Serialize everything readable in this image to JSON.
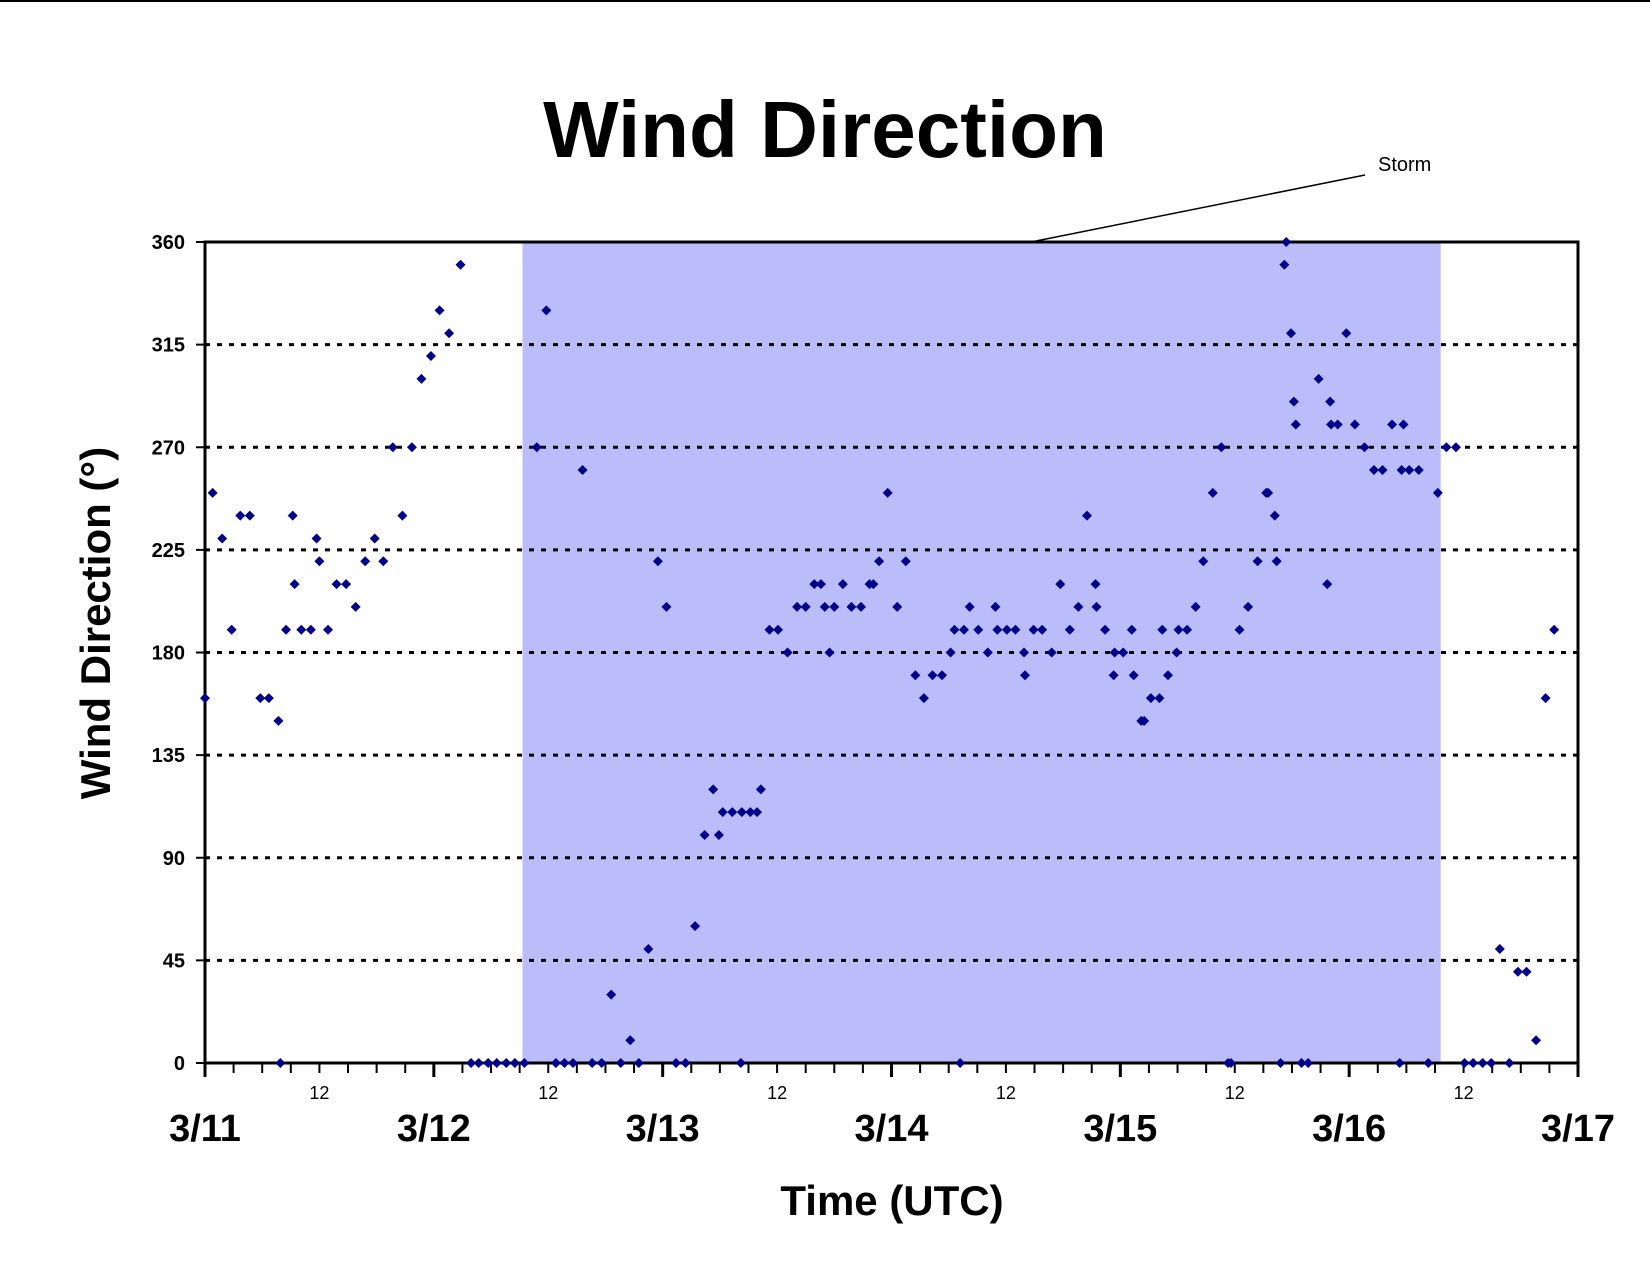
{
  "chart_data": {
    "type": "scatter",
    "title": "Wind Direction",
    "xlabel": "Time (UTC)",
    "ylabel": "Wind Direction (°)",
    "x_unit": "hours after 3/11 00 UTC",
    "xlim": [
      0,
      144
    ],
    "ylim": [
      0,
      360
    ],
    "y_ticks": [
      "0",
      "45",
      "90",
      "135",
      "180",
      "225",
      "270",
      "315",
      "360"
    ],
    "x_major_labels": [
      "3/11",
      "3/12",
      "3/13",
      "3/14",
      "3/15",
      "3/16",
      "3/17"
    ],
    "x_minor_label": "12",
    "grid": "horizontal dotted",
    "colors": {
      "marker": "#00008b",
      "storm_band": "#bbbdfb",
      "gridline": "#000000"
    },
    "storm_band": {
      "label": "Storm",
      "start": 33.3,
      "end": 129.6
    },
    "series": [
      {
        "points": [
          [
            0,
            160
          ],
          [
            0.8,
            250
          ],
          [
            1.8,
            230
          ],
          [
            2.8,
            190
          ],
          [
            3.7,
            240
          ],
          [
            4.7,
            240
          ],
          [
            5.8,
            160
          ],
          [
            6.7,
            160
          ],
          [
            7.7,
            150
          ],
          [
            7.9,
            0
          ],
          [
            8.5,
            190
          ],
          [
            9.4,
            210
          ],
          [
            9.2,
            240
          ],
          [
            10.1,
            190
          ],
          [
            11.1,
            190
          ],
          [
            11.7,
            230
          ],
          [
            12,
            220
          ],
          [
            12.9,
            190
          ],
          [
            13.8,
            210
          ],
          [
            14.8,
            210
          ],
          [
            15.8,
            200
          ],
          [
            16.8,
            220
          ],
          [
            17.8,
            230
          ],
          [
            18.7,
            220
          ],
          [
            19.7,
            270
          ],
          [
            20.7,
            240
          ],
          [
            21.7,
            270
          ],
          [
            22.7,
            300
          ],
          [
            23.7,
            310
          ],
          [
            24.6,
            330
          ],
          [
            25.6,
            320
          ],
          [
            26.8,
            350
          ],
          [
            27.9,
            0
          ],
          [
            28.7,
            0
          ],
          [
            29.7,
            0
          ],
          [
            30.6,
            0
          ],
          [
            31.6,
            0
          ],
          [
            32.5,
            0
          ],
          [
            33.5,
            0
          ],
          [
            34.8,
            270
          ],
          [
            35.8,
            330
          ],
          [
            36.8,
            0
          ],
          [
            37.7,
            0
          ],
          [
            38.6,
            0
          ],
          [
            39.6,
            260
          ],
          [
            40.6,
            0
          ],
          [
            41.6,
            0
          ],
          [
            42.6,
            30
          ],
          [
            43.6,
            0
          ],
          [
            44.6,
            10
          ],
          [
            45.5,
            0
          ],
          [
            46.5,
            50
          ],
          [
            47.5,
            220
          ],
          [
            48.4,
            200
          ],
          [
            49.4,
            0
          ],
          [
            50.4,
            0
          ],
          [
            51.4,
            60
          ],
          [
            52.4,
            100
          ],
          [
            53.3,
            120
          ],
          [
            53.9,
            100
          ],
          [
            54.3,
            110
          ],
          [
            55.3,
            110
          ],
          [
            56.2,
            0
          ],
          [
            56.3,
            110
          ],
          [
            57.2,
            110
          ],
          [
            57.9,
            110
          ],
          [
            58.3,
            120
          ],
          [
            59.2,
            190
          ],
          [
            60.1,
            190
          ],
          [
            61.1,
            180
          ],
          [
            62.1,
            200
          ],
          [
            63,
            200
          ],
          [
            63.9,
            210
          ],
          [
            64.6,
            210
          ],
          [
            65,
            200
          ],
          [
            65.5,
            180
          ],
          [
            66,
            200
          ],
          [
            66.9,
            210
          ],
          [
            67.8,
            200
          ],
          [
            68.8,
            200
          ],
          [
            69.7,
            210
          ],
          [
            70.1,
            210
          ],
          [
            70.7,
            220
          ],
          [
            71.6,
            250
          ],
          [
            72.6,
            200
          ],
          [
            73.5,
            220
          ],
          [
            74.5,
            170
          ],
          [
            75.4,
            160
          ],
          [
            76.3,
            170
          ],
          [
            77.3,
            170
          ],
          [
            78.2,
            180
          ],
          [
            78.6,
            190
          ],
          [
            79.2,
            0
          ],
          [
            79.6,
            190
          ],
          [
            80.2,
            200
          ],
          [
            81.1,
            190
          ],
          [
            82.1,
            180
          ],
          [
            82.9,
            200
          ],
          [
            83.1,
            190
          ],
          [
            84.1,
            190
          ],
          [
            85,
            190
          ],
          [
            85.9,
            180
          ],
          [
            86,
            170
          ],
          [
            86.9,
            190
          ],
          [
            87.8,
            190
          ],
          [
            88.8,
            180
          ],
          [
            89.7,
            210
          ],
          [
            90.7,
            190
          ],
          [
            91.6,
            200
          ],
          [
            92.5,
            240
          ],
          [
            93.4,
            210
          ],
          [
            93.5,
            200
          ],
          [
            94.4,
            190
          ],
          [
            95.3,
            170
          ],
          [
            95.4,
            180
          ],
          [
            96.3,
            180
          ],
          [
            97.2,
            190
          ],
          [
            97.4,
            170
          ],
          [
            98.2,
            150
          ],
          [
            98.5,
            150
          ],
          [
            99.2,
            160
          ],
          [
            100.1,
            160
          ],
          [
            100.4,
            190
          ],
          [
            101,
            170
          ],
          [
            101.9,
            180
          ],
          [
            102.1,
            190
          ],
          [
            103,
            190
          ],
          [
            103.9,
            200
          ],
          [
            104.7,
            220
          ],
          [
            105.7,
            250
          ],
          [
            106.6,
            270
          ],
          [
            107.3,
            0
          ],
          [
            107.6,
            0
          ],
          [
            108.5,
            190
          ],
          [
            109.4,
            200
          ],
          [
            110.4,
            220
          ],
          [
            111.3,
            250
          ],
          [
            111.5,
            250
          ],
          [
            112.2,
            240
          ],
          [
            112.4,
            220
          ],
          [
            112.8,
            0
          ],
          [
            113.2,
            350
          ],
          [
            113.4,
            360
          ],
          [
            113.9,
            320
          ],
          [
            114.2,
            290
          ],
          [
            114.4,
            280
          ],
          [
            115,
            0
          ],
          [
            115.7,
            0
          ],
          [
            116.8,
            300
          ],
          [
            117.7,
            210
          ],
          [
            118,
            290
          ],
          [
            118.1,
            280
          ],
          [
            118.8,
            280
          ],
          [
            119.7,
            320
          ],
          [
            120.6,
            280
          ],
          [
            121.6,
            270
          ],
          [
            122.6,
            260
          ],
          [
            123.5,
            260
          ],
          [
            124.5,
            280
          ],
          [
            125.3,
            0
          ],
          [
            125.5,
            260
          ],
          [
            125.7,
            280
          ],
          [
            126.3,
            260
          ],
          [
            127.3,
            260
          ],
          [
            128.3,
            0
          ],
          [
            129.3,
            250
          ],
          [
            130.2,
            270
          ],
          [
            131.2,
            270
          ],
          [
            132.1,
            0
          ],
          [
            133,
            0
          ],
          [
            134,
            0
          ],
          [
            134.9,
            0
          ],
          [
            135.8,
            50
          ],
          [
            136.8,
            0
          ],
          [
            137.7,
            40
          ],
          [
            138.6,
            40
          ],
          [
            139.6,
            10
          ],
          [
            140.6,
            160
          ],
          [
            141.5,
            190
          ]
        ]
      }
    ]
  }
}
